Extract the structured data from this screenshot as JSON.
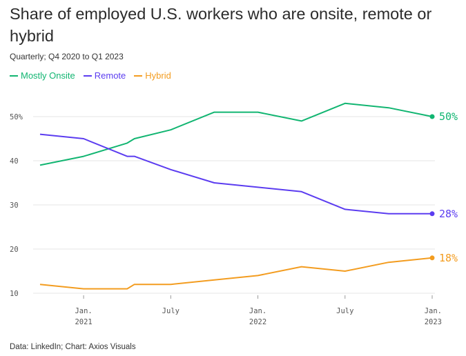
{
  "chart_data": {
    "type": "line",
    "title": "Share of employed U.S. workers who are onsite, remote or hybrid",
    "subtitle": "Quarterly; Q4 2020 to Q1 2023",
    "source": "Data: LinkedIn; Chart: Axios Visuals",
    "ylim": [
      9,
      53
    ],
    "yticks": [
      10,
      20,
      30,
      40,
      50
    ],
    "ytick_labels": [
      "10",
      "20",
      "30",
      "40",
      "50%"
    ],
    "x_range": [
      0,
      27
    ],
    "xticks": [
      {
        "x": 3,
        "line1": "Jan.",
        "line2": "2021"
      },
      {
        "x": 9,
        "line1": "July",
        "line2": ""
      },
      {
        "x": 15,
        "line1": "Jan.",
        "line2": "2022"
      },
      {
        "x": 21,
        "line1": "July",
        "line2": ""
      },
      {
        "x": 27,
        "line1": "Jan.",
        "line2": "2023"
      }
    ],
    "series": [
      {
        "name": "Mostly Onsite",
        "color": "#11b571",
        "end_label": "50%",
        "x": [
          0,
          3,
          6,
          6.5,
          9,
          12,
          15,
          18,
          21,
          24,
          27
        ],
        "values": [
          39,
          41,
          44,
          45,
          47,
          51,
          51,
          49,
          53,
          52,
          50
        ]
      },
      {
        "name": "Remote",
        "color": "#5b3cf0",
        "end_label": "28%",
        "x": [
          0,
          3,
          6,
          6.5,
          9,
          12,
          15,
          18,
          21,
          24,
          27
        ],
        "values": [
          46,
          45,
          41,
          41,
          38,
          35,
          34,
          33,
          29,
          28,
          28
        ]
      },
      {
        "name": "Hybrid",
        "color": "#f39c1f",
        "end_label": "18%",
        "x": [
          0,
          3,
          6,
          6.5,
          9,
          12,
          15,
          18,
          21,
          24,
          27
        ],
        "values": [
          12,
          11,
          11,
          12,
          12,
          13,
          14,
          16,
          15,
          17,
          18
        ]
      }
    ]
  }
}
